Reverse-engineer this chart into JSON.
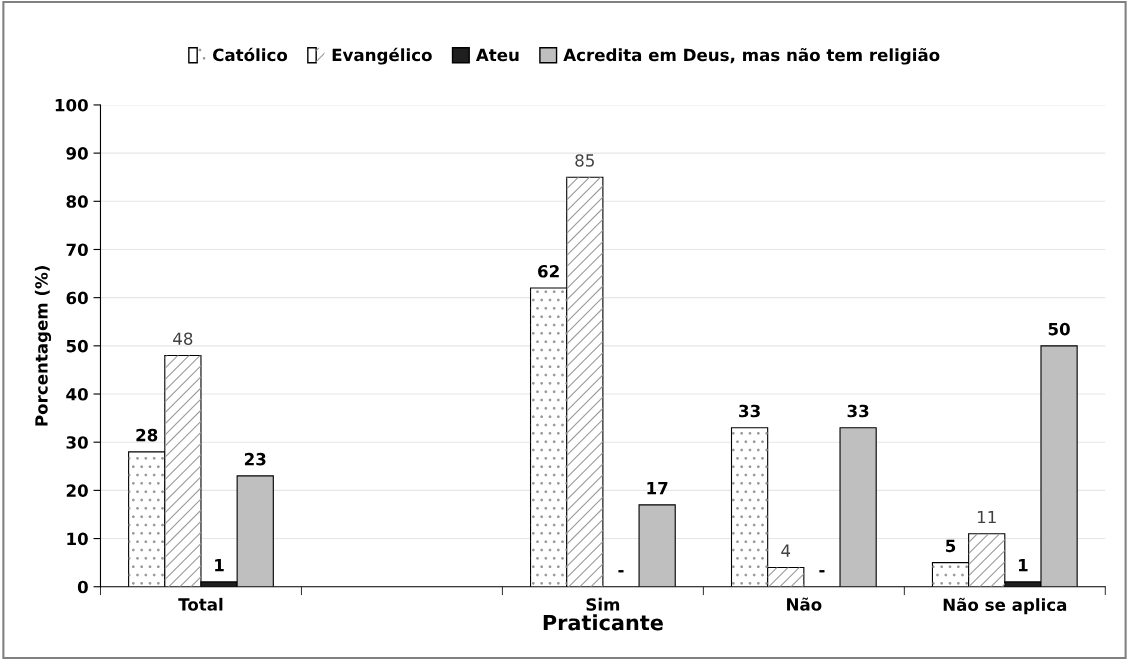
{
  "chart_data": {
    "type": "bar",
    "xlabel": "Praticante",
    "ylabel": "Porcentagem (%)",
    "categories": [
      "Total",
      null,
      "Sim",
      "Não",
      "Não se aplica"
    ],
    "series": [
      {
        "name": "Católico",
        "color": "#ffffff",
        "values": [
          28,
          null,
          62,
          33,
          5
        ],
        "value_labels": [
          "28",
          null,
          "62",
          "33",
          "5"
        ]
      },
      {
        "name": "Evangélico",
        "color": "#ffffff",
        "values": [
          48,
          null,
          85,
          4,
          11
        ],
        "value_labels": [
          "48",
          null,
          "85",
          "4",
          "11"
        ]
      },
      {
        "name": "Ateu",
        "color": "#1f1f1f",
        "values": [
          1,
          null,
          null,
          null,
          1
        ],
        "value_labels": [
          "1",
          null,
          "-",
          "-",
          "1"
        ]
      },
      {
        "name": "Acredita em Deus, mas não tem religião",
        "color": "#bfbfbf",
        "values": [
          23,
          null,
          17,
          33,
          50
        ],
        "value_labels": [
          "23",
          null,
          "17",
          "33",
          "50"
        ]
      }
    ],
    "ylim": [
      0,
      100
    ],
    "yticks": [
      0,
      10,
      20,
      30,
      40,
      50,
      60,
      70,
      80,
      90,
      100
    ],
    "grid": "y",
    "legend": "top"
  }
}
